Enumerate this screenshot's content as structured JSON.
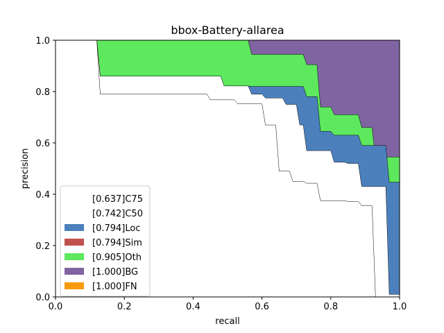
{
  "chart_data": {
    "type": "area",
    "title": "bbox-Battery-allarea",
    "xlabel": "recall",
    "ylabel": "precision",
    "xlim": [
      0,
      1
    ],
    "ylim": [
      0,
      1
    ],
    "xticks": [
      "0.0",
      "0.2",
      "0.4",
      "0.6",
      "0.8",
      "1.0"
    ],
    "yticks": [
      "0.0",
      "0.2",
      "0.4",
      "0.6",
      "0.8",
      "1.0"
    ],
    "grid": false,
    "legend_position": "lower-left",
    "legend": [
      {
        "label": "[0.637]C75",
        "color": "#ffffff"
      },
      {
        "label": "[0.742]C50",
        "color": "#ffffff"
      },
      {
        "label": "[0.794]Loc",
        "color": "#4c80bd"
      },
      {
        "label": "[0.794]Sim",
        "color": "#c0504d"
      },
      {
        "label": "[0.905]Oth",
        "color": "#5de85d"
      },
      {
        "label": "[1.000]BG",
        "color": "#8064a2"
      },
      {
        "label": "[1.000]FN",
        "color": "#f79a0c"
      }
    ],
    "series": [
      {
        "color": "#8064a2",
        "points": [
          [
            0,
            1
          ],
          [
            1,
            1
          ]
        ]
      },
      {
        "color": "#5de85d",
        "points": [
          [
            0,
            1
          ],
          [
            0.12,
            1
          ],
          [
            0.13,
            1
          ],
          [
            0.56,
            1
          ],
          [
            0.57,
            0.945
          ],
          [
            0.72,
            0.945
          ],
          [
            0.73,
            0.905
          ],
          [
            0.76,
            0.905
          ],
          [
            0.77,
            0.74
          ],
          [
            0.8,
            0.74
          ],
          [
            0.81,
            0.71
          ],
          [
            0.88,
            0.71
          ],
          [
            0.89,
            0.66
          ],
          [
            0.92,
            0.66
          ],
          [
            0.93,
            0.545
          ],
          [
            1,
            0.545
          ]
        ]
      },
      {
        "color": "#4c80bd",
        "points": [
          [
            0,
            1
          ],
          [
            0.12,
            1
          ],
          [
            0.13,
            0.86
          ],
          [
            0.48,
            0.86
          ],
          [
            0.49,
            0.822
          ],
          [
            0.56,
            0.822
          ],
          [
            0.57,
            0.82
          ],
          [
            0.72,
            0.82
          ],
          [
            0.73,
            0.78
          ],
          [
            0.76,
            0.78
          ],
          [
            0.77,
            0.645
          ],
          [
            0.8,
            0.645
          ],
          [
            0.81,
            0.63
          ],
          [
            0.88,
            0.63
          ],
          [
            0.89,
            0.59
          ],
          [
            0.96,
            0.59
          ],
          [
            0.97,
            0.447
          ],
          [
            1,
            0.447
          ]
        ]
      },
      {
        "color": "#ffffff",
        "points": [
          [
            0,
            1
          ],
          [
            0.12,
            1
          ],
          [
            0.13,
            0.86
          ],
          [
            0.48,
            0.86
          ],
          [
            0.49,
            0.822
          ],
          [
            0.56,
            0.822
          ],
          [
            0.57,
            0.79
          ],
          [
            0.6,
            0.79
          ],
          [
            0.61,
            0.775
          ],
          [
            0.66,
            0.775
          ],
          [
            0.67,
            0.75
          ],
          [
            0.7,
            0.75
          ],
          [
            0.71,
            0.67
          ],
          [
            0.72,
            0.67
          ],
          [
            0.73,
            0.57
          ],
          [
            0.8,
            0.57
          ],
          [
            0.81,
            0.525
          ],
          [
            0.84,
            0.525
          ],
          [
            0.85,
            0.52
          ],
          [
            0.88,
            0.52
          ],
          [
            0.89,
            0.43
          ],
          [
            0.96,
            0.43
          ],
          [
            0.97,
            0.01
          ],
          [
            1,
            0.01
          ]
        ]
      },
      {
        "color": "#ffffff",
        "points": [
          [
            0,
            1
          ],
          [
            0.12,
            1
          ],
          [
            0.13,
            0.79
          ],
          [
            0.44,
            0.79
          ],
          [
            0.45,
            0.768
          ],
          [
            0.52,
            0.768
          ],
          [
            0.53,
            0.752
          ],
          [
            0.6,
            0.752
          ],
          [
            0.61,
            0.67
          ],
          [
            0.64,
            0.67
          ],
          [
            0.65,
            0.49
          ],
          [
            0.68,
            0.49
          ],
          [
            0.69,
            0.45
          ],
          [
            0.72,
            0.45
          ],
          [
            0.73,
            0.443
          ],
          [
            0.76,
            0.443
          ],
          [
            0.77,
            0.375
          ],
          [
            0.84,
            0.375
          ],
          [
            0.85,
            0.372
          ],
          [
            0.88,
            0.372
          ],
          [
            0.89,
            0.355
          ],
          [
            0.92,
            0.355
          ],
          [
            0.93,
            0
          ],
          [
            1,
            0
          ]
        ]
      }
    ]
  }
}
